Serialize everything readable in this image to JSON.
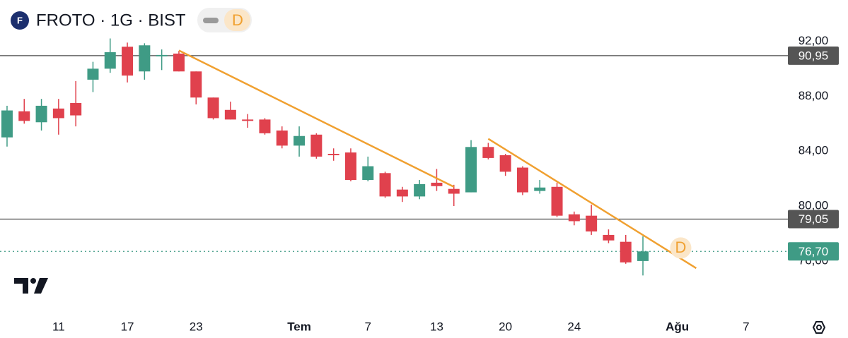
{
  "header": {
    "logo": "F",
    "title": "FROTO · 1G · BIST",
    "badge": "D"
  },
  "chart_data": {
    "type": "candlestick",
    "up_color": "#3f9b85",
    "down_color": "#e0414d",
    "open": [
      85.0,
      86.9,
      86.1,
      87.1,
      87.5,
      89.2,
      90.0,
      91.6,
      89.8,
      90.9,
      91.1,
      89.8,
      87.9,
      87.0,
      86.3,
      86.3,
      85.5,
      84.4,
      85.2,
      83.8,
      83.9,
      81.9,
      82.4,
      81.2,
      80.7,
      81.7,
      81.25,
      81.0,
      84.3,
      83.7,
      82.8,
      81.1,
      81.4,
      79.4,
      79.3,
      77.9,
      77.4,
      76.0
    ],
    "high": [
      87.3,
      87.8,
      87.8,
      87.8,
      89.1,
      90.5,
      92.2,
      91.9,
      91.85,
      91.4,
      91.3,
      89.8,
      87.9,
      87.6,
      86.7,
      86.4,
      85.8,
      85.8,
      85.3,
      84.2,
      84.2,
      83.6,
      82.5,
      81.4,
      81.9,
      82.7,
      81.55,
      84.8,
      84.6,
      83.8,
      82.9,
      81.9,
      81.7,
      79.6,
      80.1,
      78.3,
      77.9,
      77.8
    ],
    "low": [
      84.33,
      86.0,
      85.5,
      85.2,
      85.8,
      88.3,
      89.7,
      89.0,
      89.2,
      89.9,
      89.8,
      87.4,
      86.3,
      86.3,
      85.7,
      85.2,
      84.2,
      83.6,
      83.45,
      83.3,
      81.8,
      81.8,
      80.6,
      80.3,
      80.5,
      81.1,
      80.0,
      81.0,
      83.4,
      82.2,
      80.8,
      80.9,
      79.2,
      78.6,
      77.9,
      77.3,
      75.8,
      74.95
    ],
    "close": [
      86.96,
      86.2,
      87.3,
      86.4,
      86.6,
      90.0,
      91.2,
      89.5,
      91.7,
      91.0,
      89.8,
      87.9,
      86.4,
      86.3,
      86.2,
      85.3,
      84.4,
      85.1,
      83.6,
      83.7,
      81.9,
      82.9,
      80.7,
      80.7,
      81.6,
      81.45,
      80.9,
      84.3,
      83.5,
      82.5,
      81.0,
      81.35,
      79.3,
      78.9,
      78.15,
      77.5,
      75.9,
      76.7
    ],
    "xlim": [
      -0.41,
      45.27
    ],
    "xticks": [
      {
        "value": 3,
        "label": "11"
      },
      {
        "value": 7,
        "label": "17"
      },
      {
        "value": 11,
        "label": "23"
      },
      {
        "value": 17,
        "label": "Tem"
      },
      {
        "value": 21,
        "label": "7"
      },
      {
        "value": 25,
        "label": "13"
      },
      {
        "value": 29,
        "label": "20"
      },
      {
        "value": 33,
        "label": "24"
      },
      {
        "value": 39,
        "label": "Ağu"
      },
      {
        "value": 43,
        "label": "7"
      }
    ],
    "ylim": [
      72.4,
      95.0
    ],
    "yticks": [
      {
        "value": 76,
        "label": "76,00"
      },
      {
        "value": 80,
        "label": "80,00"
      },
      {
        "value": 84,
        "label": "84,00"
      },
      {
        "value": 88,
        "label": "88,00"
      },
      {
        "value": 92,
        "label": "92,00"
      }
    ],
    "hlines": [
      {
        "value": 90.95,
        "label": "90,95"
      },
      {
        "value": 79.05,
        "label": "79,05"
      }
    ],
    "last_price": {
      "value": 76.7,
      "label": "76,70"
    },
    "trendlines": [
      {
        "x": [
          10,
          26
        ],
        "y": [
          91.33,
          81.4
        ]
      },
      {
        "x": [
          28,
          40.1
        ],
        "y": [
          84.9,
          75.48
        ]
      }
    ],
    "trend_color": "#f0a030",
    "annotation": {
      "text": "D",
      "x": 39.2,
      "y": 76.95
    }
  }
}
